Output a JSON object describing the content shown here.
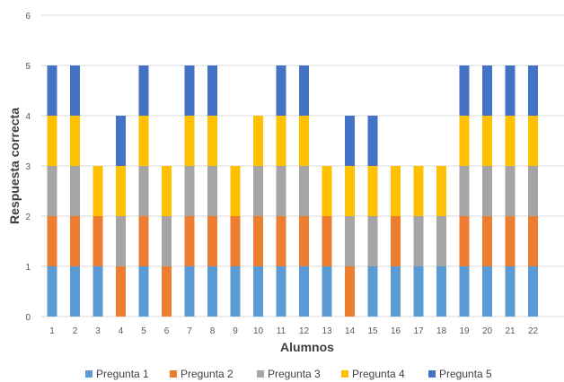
{
  "chart_data": {
    "type": "bar",
    "stacked": true,
    "title": "",
    "xlabel": "Alumnos",
    "ylabel": "Respuesta correcta",
    "ylim": [
      0,
      6
    ],
    "yticks": [
      0,
      1,
      2,
      3,
      4,
      5,
      6
    ],
    "grid": true,
    "legend_position": "bottom",
    "categories": [
      "1",
      "2",
      "3",
      "4",
      "5",
      "6",
      "7",
      "8",
      "9",
      "10",
      "11",
      "12",
      "13",
      "14",
      "15",
      "16",
      "17",
      "18",
      "19",
      "20",
      "21",
      "22"
    ],
    "series": [
      {
        "name": "Pregunta 1",
        "color": "#5b9bd5",
        "values": [
          1,
          1,
          1,
          0,
          1,
          0,
          1,
          1,
          1,
          1,
          1,
          1,
          1,
          0,
          1,
          1,
          1,
          1,
          1,
          1,
          1,
          1
        ]
      },
      {
        "name": "Pregunta 2",
        "color": "#ed7d31",
        "values": [
          1,
          1,
          1,
          1,
          1,
          1,
          1,
          1,
          1,
          1,
          1,
          1,
          1,
          1,
          0,
          1,
          0,
          0,
          1,
          1,
          1,
          1
        ]
      },
      {
        "name": "Pregunta 3",
        "color": "#a5a5a5",
        "values": [
          1,
          1,
          0,
          1,
          1,
          1,
          1,
          1,
          0,
          1,
          1,
          1,
          0,
          1,
          1,
          0,
          1,
          1,
          1,
          1,
          1,
          1
        ]
      },
      {
        "name": "Pregunta 4",
        "color": "#ffc000",
        "values": [
          1,
          1,
          1,
          1,
          1,
          1,
          1,
          1,
          1,
          1,
          1,
          1,
          1,
          1,
          1,
          1,
          1,
          1,
          1,
          1,
          1,
          1
        ]
      },
      {
        "name": "Pregunta 5",
        "color": "#4472c4",
        "values": [
          1,
          1,
          0,
          1,
          1,
          0,
          1,
          1,
          0,
          0,
          1,
          1,
          0,
          1,
          1,
          0,
          0,
          0,
          1,
          1,
          1,
          1
        ]
      }
    ]
  }
}
